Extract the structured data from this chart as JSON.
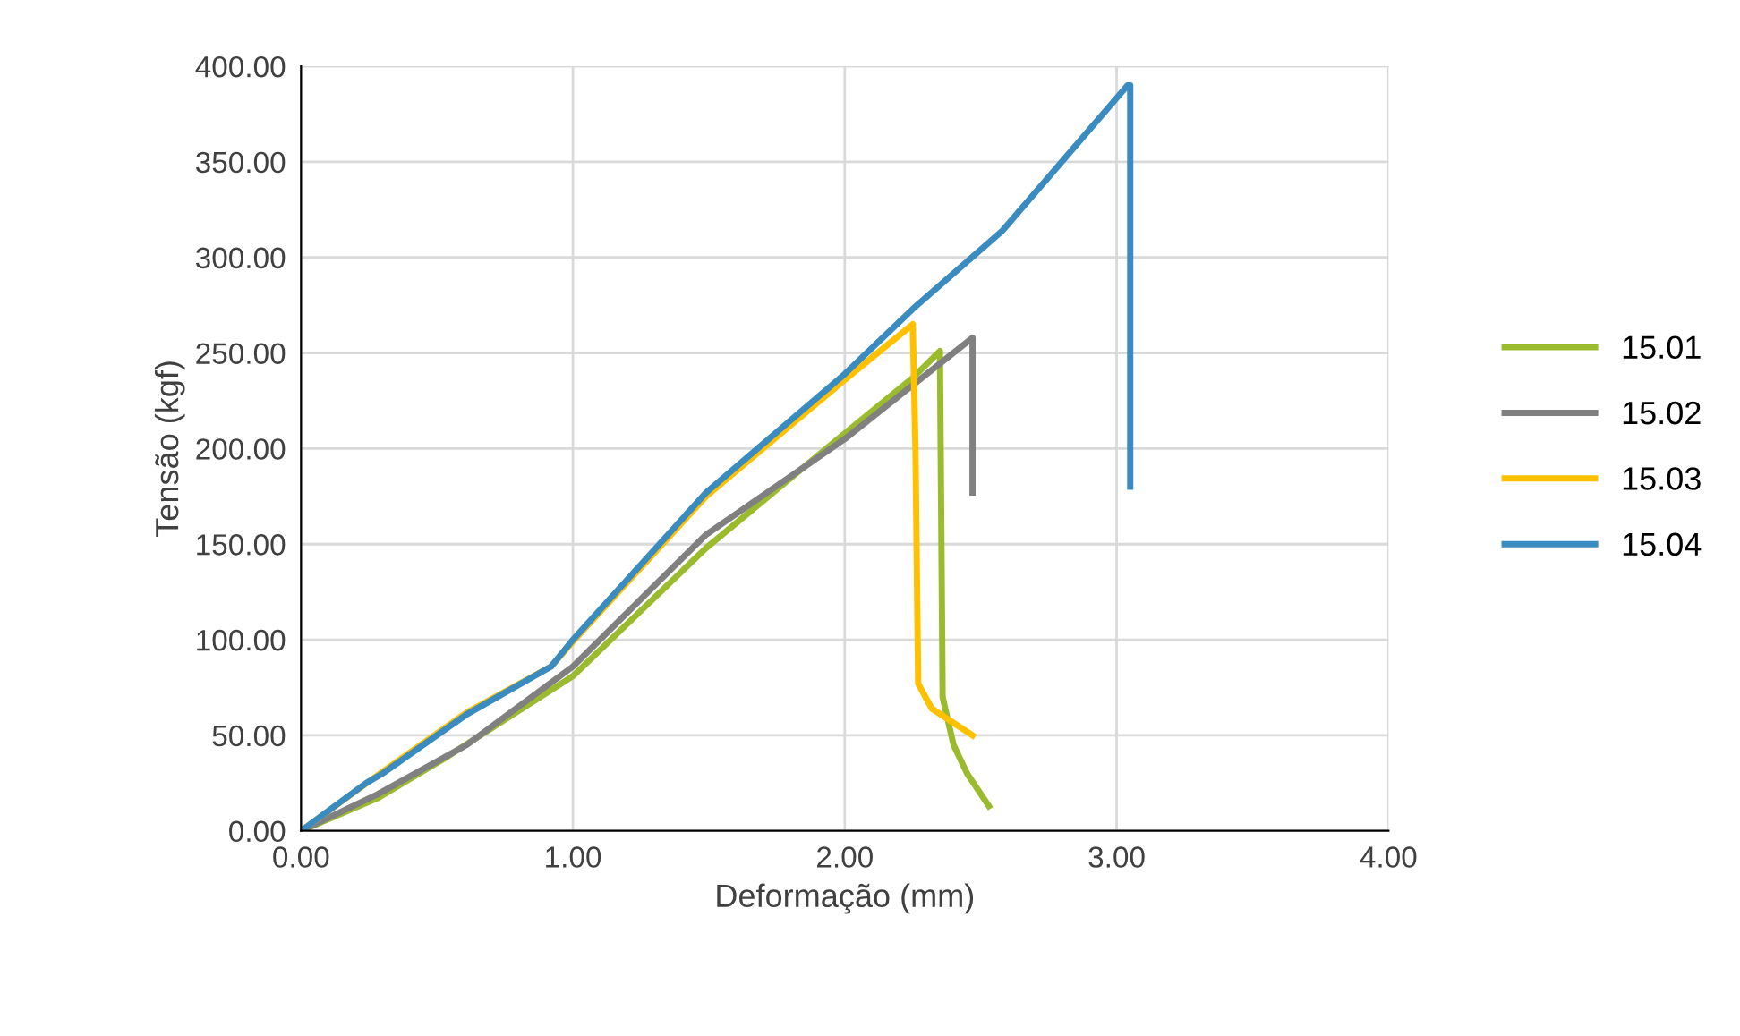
{
  "chart_data": {
    "type": "line",
    "xlabel": "Deformação (mm)",
    "ylabel": "Tensão (kgf)",
    "xlim": [
      0,
      4
    ],
    "ylim": [
      0,
      400
    ],
    "xticks": [
      {
        "value": 0,
        "label": "0.00"
      },
      {
        "value": 1,
        "label": "1.00"
      },
      {
        "value": 2,
        "label": "2.00"
      },
      {
        "value": 3,
        "label": "3.00"
      },
      {
        "value": 4,
        "label": "4.00"
      }
    ],
    "yticks": [
      {
        "value": 0,
        "label": "0.00"
      },
      {
        "value": 50,
        "label": "50.00"
      },
      {
        "value": 100,
        "label": "100.00"
      },
      {
        "value": 150,
        "label": "150.00"
      },
      {
        "value": 200,
        "label": "200.00"
      },
      {
        "value": 250,
        "label": "250.00"
      },
      {
        "value": 300,
        "label": "300.00"
      },
      {
        "value": 350,
        "label": "350.00"
      },
      {
        "value": 400,
        "label": "400.00"
      }
    ],
    "grid": true,
    "legend": "right",
    "marker": "none",
    "line_style": "solid",
    "series": [
      {
        "name": "15.01",
        "color": "#9bbb2f",
        "x": [
          0,
          0.28,
          0.54,
          1.0,
          1.49,
          2.0,
          2.25,
          2.35,
          2.36,
          2.4,
          2.45,
          2.53
        ],
        "values": [
          0,
          17,
          39,
          81,
          148,
          208,
          237,
          251,
          70,
          45,
          30,
          13
        ]
      },
      {
        "name": "15.02",
        "color": "#808080",
        "x": [
          0,
          0.28,
          0.61,
          1.0,
          1.49,
          2.0,
          2.47,
          2.47
        ],
        "values": [
          0,
          19,
          45,
          86,
          155,
          205,
          258,
          177
        ]
      },
      {
        "name": "15.03",
        "color": "#ffc000",
        "x": [
          0,
          0.3,
          0.61,
          0.92,
          1.0,
          1.49,
          2.0,
          2.25,
          2.26,
          2.27,
          2.32,
          2.47
        ],
        "values": [
          0,
          31,
          62,
          86,
          99,
          175,
          236,
          265,
          200,
          77,
          64,
          50
        ]
      },
      {
        "name": "15.04",
        "color": "#3a8bbf",
        "x": [
          0,
          0.24,
          0.3,
          0.61,
          0.92,
          1.0,
          1.49,
          2.0,
          2.25,
          2.58,
          3.04,
          3.05,
          3.05
        ],
        "values": [
          0,
          25,
          30,
          61,
          86,
          100,
          177,
          239,
          273,
          314,
          390,
          390,
          180
        ]
      }
    ]
  }
}
